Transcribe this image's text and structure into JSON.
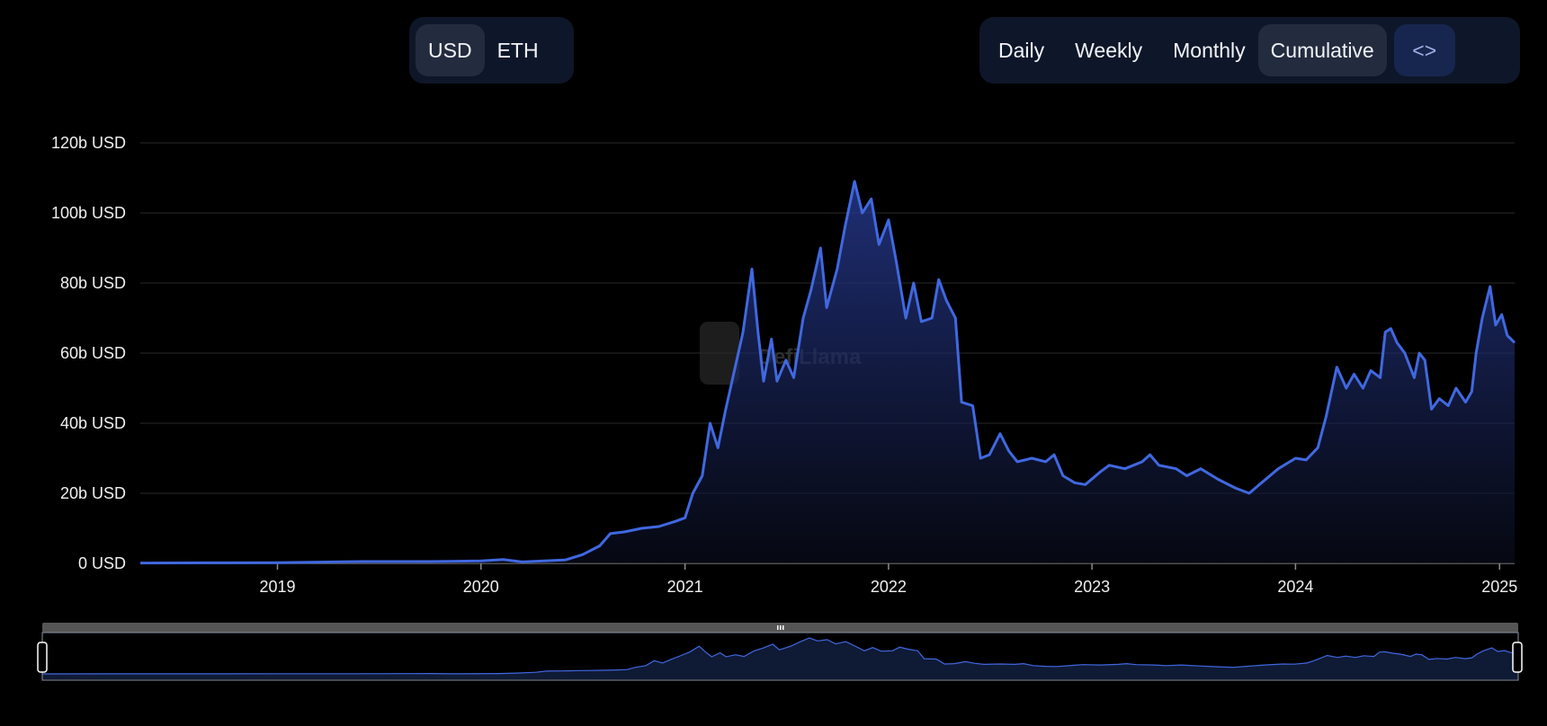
{
  "currency_toggle": {
    "options": [
      "USD",
      "ETH"
    ],
    "selected": "USD"
  },
  "period_toggle": {
    "options": [
      "Daily",
      "Weekly",
      "Monthly",
      "Cumulative"
    ],
    "selected": "Cumulative"
  },
  "embed_button": {
    "icon": "code-brackets-icon",
    "label": "<>"
  },
  "watermark": "DefiLlama",
  "colors": {
    "line": "#4068e0",
    "background": "#000000",
    "grid": "#1c1c1c"
  },
  "chart_data": {
    "type": "area",
    "title": "",
    "xlabel": "",
    "ylabel": "",
    "ylim": [
      0,
      120
    ],
    "y_unit": "b USD",
    "y_ticks": [
      "0 USD",
      "20b USD",
      "40b USD",
      "60b USD",
      "80b USD",
      "100b USD",
      "120b USD"
    ],
    "x_ticks": [
      "2019",
      "2020",
      "2021",
      "2022",
      "2023",
      "2024",
      "2025"
    ],
    "x_range": [
      "2018-04-30",
      "2025-01-28"
    ],
    "grid": true,
    "legend": "none",
    "series": [
      {
        "points": [
          [
            "2018-04-30",
            0.1
          ],
          [
            "2018-09-01",
            0.15
          ],
          [
            "2019-01-01",
            0.2
          ],
          [
            "2019-06-01",
            0.5
          ],
          [
            "2019-10-01",
            0.5
          ],
          [
            "2020-01-01",
            0.7
          ],
          [
            "2020-02-10",
            1.1
          ],
          [
            "2020-03-15",
            0.4
          ],
          [
            "2020-06-01",
            1.0
          ],
          [
            "2020-07-01",
            2.5
          ],
          [
            "2020-08-01",
            5
          ],
          [
            "2020-08-20",
            8.5
          ],
          [
            "2020-09-15",
            9
          ],
          [
            "2020-10-15",
            10
          ],
          [
            "2020-11-15",
            10.5
          ],
          [
            "2020-12-15",
            12
          ],
          [
            "2021-01-01",
            13
          ],
          [
            "2021-01-15",
            20
          ],
          [
            "2021-02-01",
            25
          ],
          [
            "2021-02-15",
            40
          ],
          [
            "2021-03-01",
            33
          ],
          [
            "2021-03-15",
            44
          ],
          [
            "2021-04-01",
            56
          ],
          [
            "2021-04-15",
            66
          ],
          [
            "2021-05-01",
            84
          ],
          [
            "2021-05-12",
            66
          ],
          [
            "2021-05-22",
            52
          ],
          [
            "2021-06-05",
            64
          ],
          [
            "2021-06-15",
            52
          ],
          [
            "2021-07-01",
            58
          ],
          [
            "2021-07-15",
            53
          ],
          [
            "2021-08-01",
            70
          ],
          [
            "2021-08-15",
            78
          ],
          [
            "2021-09-01",
            90
          ],
          [
            "2021-09-12",
            73
          ],
          [
            "2021-10-01",
            84
          ],
          [
            "2021-10-15",
            96
          ],
          [
            "2021-11-01",
            109
          ],
          [
            "2021-11-15",
            100
          ],
          [
            "2021-12-01",
            104
          ],
          [
            "2021-12-15",
            91
          ],
          [
            "2022-01-01",
            98
          ],
          [
            "2022-01-15",
            86
          ],
          [
            "2022-02-01",
            70
          ],
          [
            "2022-02-15",
            80
          ],
          [
            "2022-03-01",
            69
          ],
          [
            "2022-03-20",
            70
          ],
          [
            "2022-04-01",
            81
          ],
          [
            "2022-04-15",
            75
          ],
          [
            "2022-05-01",
            70
          ],
          [
            "2022-05-12",
            46
          ],
          [
            "2022-06-01",
            45
          ],
          [
            "2022-06-15",
            30
          ],
          [
            "2022-07-01",
            31
          ],
          [
            "2022-07-20",
            37
          ],
          [
            "2022-08-05",
            32
          ],
          [
            "2022-08-20",
            29
          ],
          [
            "2022-09-15",
            30
          ],
          [
            "2022-10-10",
            29
          ],
          [
            "2022-10-25",
            31
          ],
          [
            "2022-11-10",
            25
          ],
          [
            "2022-12-01",
            23
          ],
          [
            "2022-12-20",
            22.5
          ],
          [
            "2023-01-15",
            26
          ],
          [
            "2023-02-01",
            28
          ],
          [
            "2023-03-01",
            27
          ],
          [
            "2023-04-01",
            29
          ],
          [
            "2023-04-15",
            31
          ],
          [
            "2023-05-01",
            28
          ],
          [
            "2023-06-01",
            27
          ],
          [
            "2023-06-20",
            25
          ],
          [
            "2023-07-15",
            27
          ],
          [
            "2023-08-15",
            24
          ],
          [
            "2023-09-15",
            21.5
          ],
          [
            "2023-10-10",
            20
          ],
          [
            "2023-11-01",
            23
          ],
          [
            "2023-12-01",
            27
          ],
          [
            "2024-01-01",
            30
          ],
          [
            "2024-01-20",
            29.5
          ],
          [
            "2024-02-10",
            33
          ],
          [
            "2024-02-25",
            42
          ],
          [
            "2024-03-15",
            56
          ],
          [
            "2024-04-01",
            50
          ],
          [
            "2024-04-15",
            54
          ],
          [
            "2024-05-01",
            50
          ],
          [
            "2024-05-15",
            55
          ],
          [
            "2024-06-01",
            53
          ],
          [
            "2024-06-10",
            66
          ],
          [
            "2024-06-20",
            67
          ],
          [
            "2024-07-01",
            63
          ],
          [
            "2024-07-15",
            60
          ],
          [
            "2024-08-01",
            53
          ],
          [
            "2024-08-10",
            60
          ],
          [
            "2024-08-20",
            58
          ],
          [
            "2024-09-01",
            44
          ],
          [
            "2024-09-15",
            47
          ],
          [
            "2024-10-01",
            45
          ],
          [
            "2024-10-15",
            50
          ],
          [
            "2024-11-01",
            46
          ],
          [
            "2024-11-12",
            49
          ],
          [
            "2024-11-20",
            60
          ],
          [
            "2024-12-01",
            70
          ],
          [
            "2024-12-15",
            79
          ],
          [
            "2024-12-25",
            68
          ],
          [
            "2025-01-05",
            71
          ],
          [
            "2025-01-15",
            65
          ],
          [
            "2025-01-28",
            63
          ]
        ]
      }
    ]
  }
}
